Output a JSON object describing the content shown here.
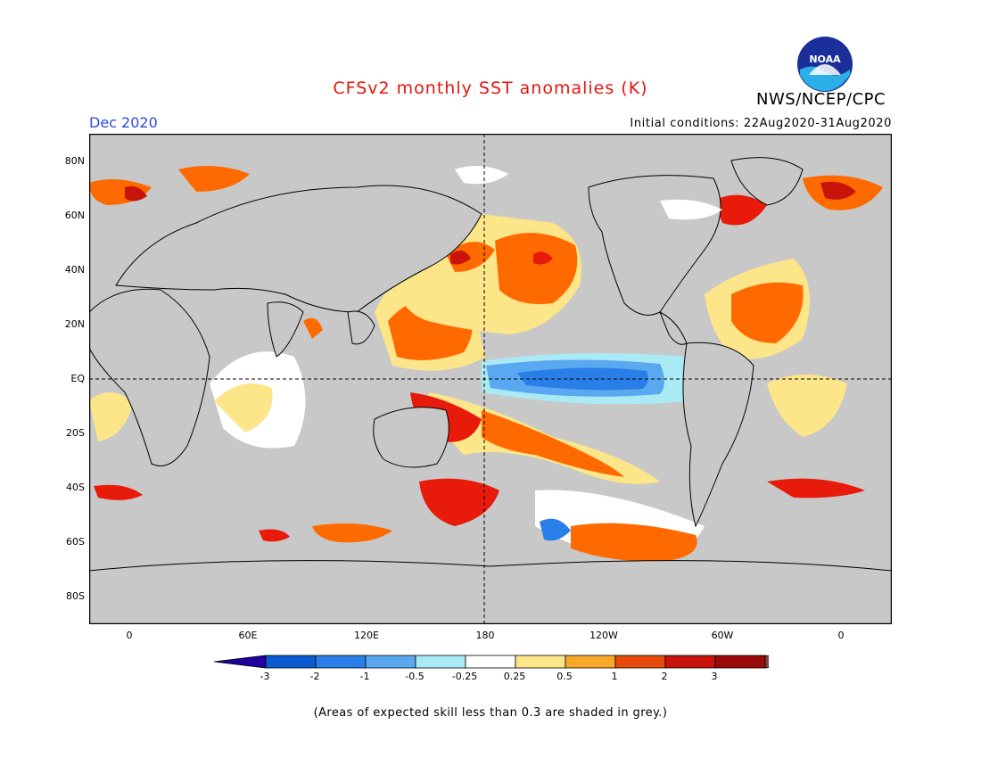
{
  "title": "CFSv2 monthly SST anomalies (K)",
  "organization": "NWS/NCEP/CPC",
  "logo_text": "NOAA",
  "month": "Dec 2020",
  "initial_conditions": "Initial conditions: 22Aug2020-31Aug2020",
  "footnote": "(Areas of expected skill less than 0.3 are shaded in grey.)",
  "lat_labels": [
    "80N",
    "60N",
    "40N",
    "20N",
    "EQ",
    "20S",
    "40S",
    "60S",
    "80S"
  ],
  "lon_labels": [
    "0",
    "60E",
    "120E",
    "180",
    "120W",
    "60W",
    "0"
  ],
  "colorbar": {
    "labels": [
      "-3",
      "-2",
      "-1",
      "-0.5",
      "-0.25",
      "0.25",
      "0.5",
      "1",
      "2",
      "3"
    ],
    "colors": [
      "#2000a0",
      "#0a5ad0",
      "#2a7ee8",
      "#5aa8f0",
      "#aaeaf5",
      "#ffffff",
      "#fde68a",
      "#f7a828",
      "#e84a0c",
      "#c8140a",
      "#9a0a08",
      "#7a4a38"
    ]
  },
  "colors": {
    "land": "#c8c8c8",
    "skill_mask": "#c8c8c8",
    "warm_1": "#fde68a",
    "warm_2": "#ff6a00",
    "warm_3": "#e81a0a",
    "warm_4": "#a50000",
    "cool_1": "#aaeaf5",
    "cool_2": "#5aa8f0",
    "cool_3": "#2a7ee8",
    "title": "#e8140f",
    "month": "#2a4bd6"
  }
}
